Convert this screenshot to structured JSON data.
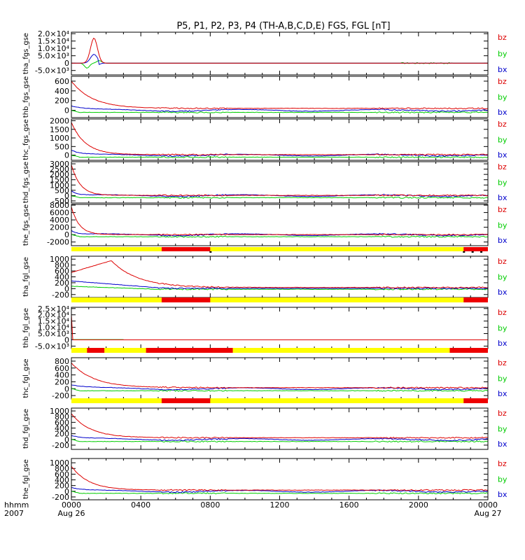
{
  "title": "P5, P1, P2, P3, P4 (TH-A,B,C,D,E) FGS, FGL [nT]",
  "colors": {
    "bx": "#0000cc",
    "by": "#00cc00",
    "bz": "#dd0000",
    "bar_yellow": "#ffff00",
    "bar_red": "#ee0000",
    "frame": "#000000"
  },
  "footer": {
    "time_label": "hhmm",
    "year_label": "2007",
    "ticks": [
      {
        "t": 0,
        "label": "0000",
        "sub": "Aug 26"
      },
      {
        "t": 4,
        "label": "0400",
        "sub": ""
      },
      {
        "t": 8,
        "label": "0800",
        "sub": ""
      },
      {
        "t": 12,
        "label": "1200",
        "sub": ""
      },
      {
        "t": 16,
        "label": "1600",
        "sub": ""
      },
      {
        "t": 20,
        "label": "2000",
        "sub": ""
      },
      {
        "t": 24,
        "label": "0000",
        "sub": "Aug 27"
      }
    ]
  },
  "chart_data": [
    {
      "type": "line",
      "ylabel": "tha_fgs_gse",
      "ylim": [
        -8000,
        21000
      ],
      "ytick_labels": [
        {
          "v": 20000,
          "text": "2.0×10⁴"
        },
        {
          "v": 15000,
          "text": "1.5×10⁴"
        },
        {
          "v": 10000,
          "text": "1.0×10⁴"
        },
        {
          "v": 5000,
          "text": "5.0×10³"
        },
        {
          "v": 0,
          "text": "0"
        },
        {
          "v": -5000,
          "text": "-5.0×10³"
        }
      ],
      "legend": [
        "bz",
        "by",
        "bx"
      ],
      "profile": "spike",
      "peak": 17000,
      "peak_t": 1.3,
      "series": [
        {
          "name": "bx"
        },
        {
          "name": "by"
        },
        {
          "name": "bz"
        }
      ]
    },
    {
      "type": "line",
      "ylabel": "thb_fgs_gse",
      "ylim": [
        -150,
        700
      ],
      "ytick_labels": [
        {
          "v": 600,
          "text": "600"
        },
        {
          "v": 400,
          "text": "400"
        },
        {
          "v": 200,
          "text": "200"
        },
        {
          "v": 0,
          "text": "0"
        }
      ],
      "legend": [
        "bz",
        "by",
        "bx"
      ],
      "profile": "decay",
      "z0": 600,
      "z_end": 40,
      "tau": 1.2,
      "series": [
        {
          "name": "bx"
        },
        {
          "name": "by"
        },
        {
          "name": "bz"
        }
      ]
    },
    {
      "type": "line",
      "ylabel": "thc_fgs_gse",
      "ylim": [
        -300,
        2100
      ],
      "ytick_labels": [
        {
          "v": 2000,
          "text": "2000"
        },
        {
          "v": 1500,
          "text": "1500"
        },
        {
          "v": 1000,
          "text": "1000"
        },
        {
          "v": 500,
          "text": "500"
        },
        {
          "v": 0,
          "text": "0"
        }
      ],
      "legend": [
        "bz",
        "by",
        "bx"
      ],
      "profile": "decay",
      "z0": 1900,
      "z_end": 30,
      "tau": 0.8,
      "series": [
        {
          "name": "bx"
        },
        {
          "name": "by"
        },
        {
          "name": "bz"
        }
      ]
    },
    {
      "type": "line",
      "ylabel": "thd_fgs_gse",
      "ylim": [
        -700,
        3200
      ],
      "ytick_labels": [
        {
          "v": 3000,
          "text": "3000"
        },
        {
          "v": 2500,
          "text": "2500"
        },
        {
          "v": 2000,
          "text": "2000"
        },
        {
          "v": 1500,
          "text": "1500"
        },
        {
          "v": 1000,
          "text": "1000"
        },
        {
          "v": 500,
          "text": "500"
        },
        {
          "v": 0,
          "text": "0"
        },
        {
          "v": -500,
          "text": "-500"
        }
      ],
      "legend": [
        "bz",
        "by",
        "bx"
      ],
      "profile": "decay",
      "z0": 2900,
      "z_end": 20,
      "tau": 0.5,
      "series": [
        {
          "name": "bx"
        },
        {
          "name": "by"
        },
        {
          "name": "bz"
        }
      ]
    },
    {
      "type": "line",
      "ylabel": "the_fgs_gse",
      "ylim": [
        -3000,
        8200
      ],
      "ytick_labels": [
        {
          "v": 8000,
          "text": "8000"
        },
        {
          "v": 6000,
          "text": "6000"
        },
        {
          "v": 4000,
          "text": "4000"
        },
        {
          "v": 2000,
          "text": "2000"
        },
        {
          "v": 0,
          "text": "0"
        },
        {
          "v": -2000,
          "text": "-2000"
        }
      ],
      "legend": [
        "bz",
        "by",
        "bx"
      ],
      "profile": "decay",
      "z0": 7500,
      "z_end": 10,
      "tau": 0.45,
      "series": [
        {
          "name": "bx"
        },
        {
          "name": "by"
        },
        {
          "name": "bz"
        }
      ],
      "mode_bar": {
        "red": [
          [
            5.2,
            8.0
          ],
          [
            22.6,
            24
          ]
        ],
        "marks": [
          8.0,
          22.6,
          23.1,
          23.6
        ]
      }
    },
    {
      "type": "line",
      "ylabel": "tha_fgl_gse",
      "ylim": [
        -300,
        1100
      ],
      "ytick_labels": [
        {
          "v": 1000,
          "text": "1000"
        },
        {
          "v": 800,
          "text": "800"
        },
        {
          "v": 600,
          "text": "600"
        },
        {
          "v": 400,
          "text": "400"
        },
        {
          "v": 200,
          "text": "200"
        },
        {
          "v": 0,
          "text": "0"
        },
        {
          "v": -200,
          "text": "-200"
        }
      ],
      "legend": [
        "bz",
        "by",
        "bx"
      ],
      "profile": "rise_decay",
      "z0": 550,
      "peak": 950,
      "peak_t": 2.3,
      "z_end": 40,
      "tau": 1.5,
      "series": [
        {
          "name": "bx"
        },
        {
          "name": "by"
        },
        {
          "name": "bz"
        }
      ],
      "mode_bar": {
        "red": [
          [
            5.2,
            8.0
          ],
          [
            22.6,
            24
          ]
        ],
        "marks": []
      }
    },
    {
      "type": "line",
      "ylabel": "thb_fgl_gse",
      "ylim": [
        -7000,
        26000
      ],
      "ytick_labels": [
        {
          "v": 25000,
          "text": "2.5×10⁴"
        },
        {
          "v": 20000,
          "text": "2.0×10⁴"
        },
        {
          "v": 15000,
          "text": "1.5×10⁴"
        },
        {
          "v": 10000,
          "text": "1.0×10⁴"
        },
        {
          "v": 5000,
          "text": "5.0×10³"
        },
        {
          "v": 0,
          "text": "0"
        },
        {
          "v": -5000,
          "text": "-5.0×10³"
        }
      ],
      "legend": [
        "bz",
        "by",
        "bx"
      ],
      "profile": "flat",
      "initial": 20000,
      "initial_t": 0.05,
      "series": [
        {
          "name": "bx"
        },
        {
          "name": "by"
        },
        {
          "name": "bz"
        }
      ],
      "mode_bar": {
        "red": [
          [
            0.9,
            1.9
          ],
          [
            4.3,
            9.3
          ],
          [
            21.8,
            24
          ]
        ],
        "marks": []
      }
    },
    {
      "type": "line",
      "ylabel": "thc_fgl_gse",
      "ylim": [
        -300,
        900
      ],
      "ytick_labels": [
        {
          "v": 800,
          "text": "800"
        },
        {
          "v": 600,
          "text": "600"
        },
        {
          "v": 400,
          "text": "400"
        },
        {
          "v": 200,
          "text": "200"
        },
        {
          "v": 0,
          "text": "0"
        },
        {
          "v": -200,
          "text": "-200"
        }
      ],
      "legend": [
        "bz",
        "by",
        "bx"
      ],
      "profile": "decay",
      "z0": 750,
      "z_end": 30,
      "tau": 1.3,
      "series": [
        {
          "name": "bx"
        },
        {
          "name": "by"
        },
        {
          "name": "bz"
        }
      ],
      "mode_bar": {
        "red": [
          [
            5.2,
            8.0
          ],
          [
            22.6,
            24
          ]
        ],
        "marks": []
      }
    },
    {
      "type": "line",
      "ylabel": "thd_fgl_gse",
      "ylim": [
        -350,
        1100
      ],
      "ytick_labels": [
        {
          "v": 1000,
          "text": "1000"
        },
        {
          "v": 800,
          "text": "800"
        },
        {
          "v": 600,
          "text": "600"
        },
        {
          "v": 400,
          "text": "400"
        },
        {
          "v": 200,
          "text": "200"
        },
        {
          "v": 0,
          "text": "0"
        },
        {
          "v": -200,
          "text": "-200"
        }
      ],
      "legend": [
        "bz",
        "by",
        "bx"
      ],
      "profile": "decay",
      "z0": 900,
      "z_end": 60,
      "tau": 1.1,
      "series": [
        {
          "name": "bx"
        },
        {
          "name": "by"
        },
        {
          "name": "bz"
        }
      ],
      "mode_bar": {
        "red": [
          [
            5.2,
            8.0
          ],
          [
            22.6,
            24
          ]
        ],
        "marks": []
      }
    },
    {
      "type": "line",
      "ylabel": "the_fgl_gse",
      "ylim": [
        -300,
        1150
      ],
      "ytick_labels": [
        {
          "v": 1000,
          "text": "1000"
        },
        {
          "v": 800,
          "text": "800"
        },
        {
          "v": 600,
          "text": "600"
        },
        {
          "v": 400,
          "text": "400"
        },
        {
          "v": 200,
          "text": "200"
        },
        {
          "v": 0,
          "text": "0"
        },
        {
          "v": -200,
          "text": "-200"
        }
      ],
      "legend": [
        "bz",
        "by",
        "bx"
      ],
      "profile": "decay",
      "z0": 880,
      "z_end": 40,
      "tau": 1.0,
      "series": [
        {
          "name": "bx"
        },
        {
          "name": "by"
        },
        {
          "name": "bz"
        }
      ]
    }
  ]
}
